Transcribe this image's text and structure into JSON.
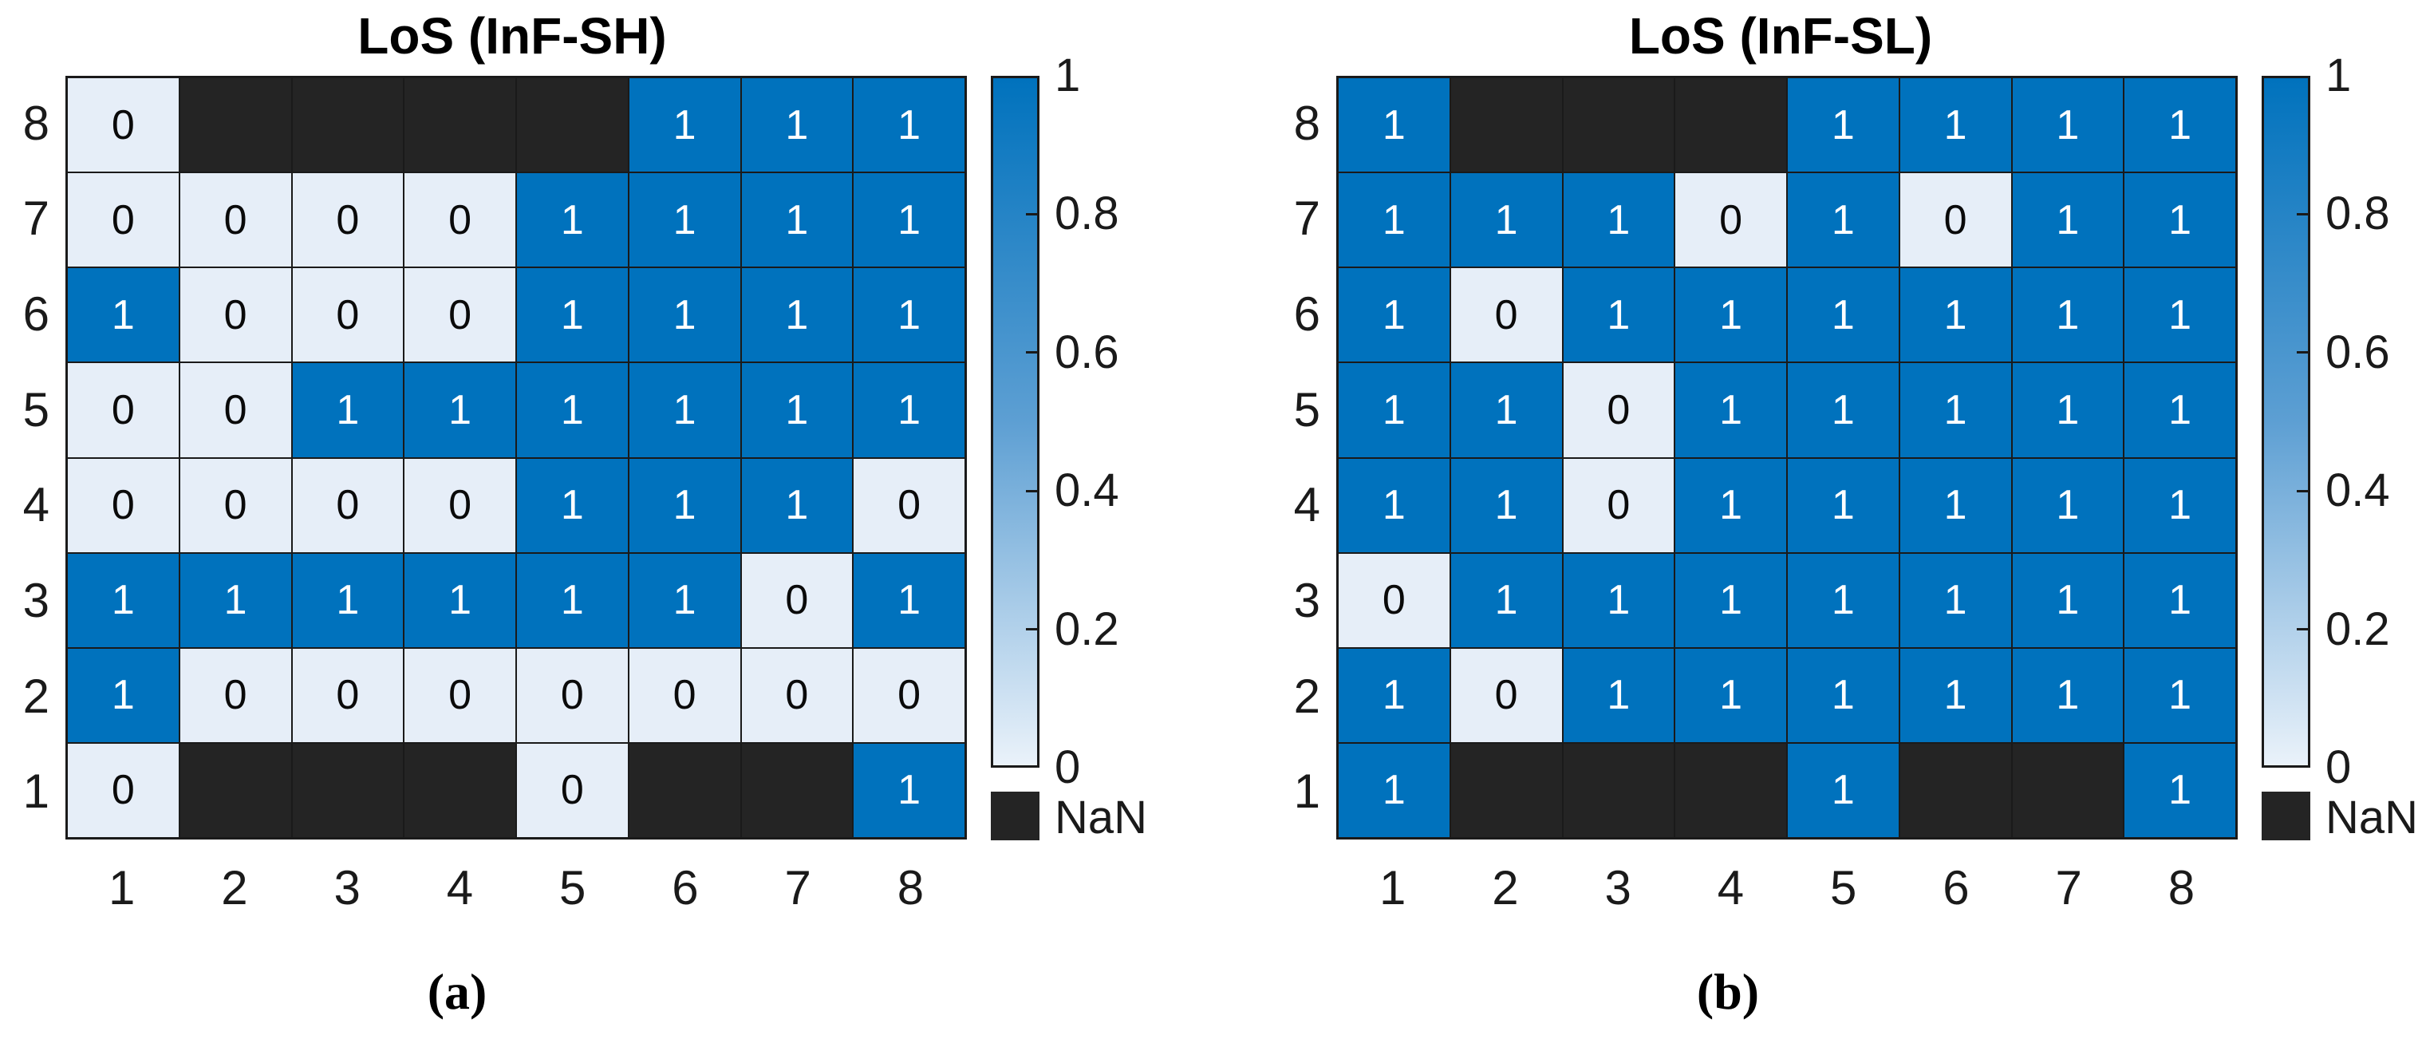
{
  "figure": {
    "captions": [
      "(a)",
      "(b)"
    ],
    "colors": {
      "value_1": "#0072BD",
      "value_0": "#E6EEF8",
      "nan": "#242424",
      "grid_line": "#1a1a1a",
      "colorbar_top": "#0072BD",
      "colorbar_bottom": "#EAF2FA"
    }
  },
  "chart_data": [
    {
      "type": "heatmap",
      "title": "LoS (InF-SH)",
      "x_categories": [
        1,
        2,
        3,
        4,
        5,
        6,
        7,
        8
      ],
      "y_categories_top_to_bottom": [
        8,
        7,
        6,
        5,
        4,
        3,
        2,
        1
      ],
      "values_top_to_bottom": [
        [
          0,
          null,
          null,
          null,
          null,
          1,
          1,
          1
        ],
        [
          0,
          0,
          0,
          0,
          1,
          1,
          1,
          1
        ],
        [
          1,
          0,
          0,
          0,
          1,
          1,
          1,
          1
        ],
        [
          0,
          0,
          1,
          1,
          1,
          1,
          1,
          1
        ],
        [
          0,
          0,
          0,
          0,
          1,
          1,
          1,
          0
        ],
        [
          1,
          1,
          1,
          1,
          1,
          1,
          0,
          1
        ],
        [
          1,
          0,
          0,
          0,
          0,
          0,
          0,
          0
        ],
        [
          0,
          null,
          null,
          null,
          0,
          null,
          null,
          1
        ]
      ],
      "value_range": [
        0,
        1
      ],
      "colorbar": {
        "ticks": [
          "1",
          "0.8",
          "0.6",
          "0.4",
          "0.2",
          "0"
        ],
        "nan_label": "NaN"
      }
    },
    {
      "type": "heatmap",
      "title": "LoS (InF-SL)",
      "x_categories": [
        1,
        2,
        3,
        4,
        5,
        6,
        7,
        8
      ],
      "y_categories_top_to_bottom": [
        8,
        7,
        6,
        5,
        4,
        3,
        2,
        1
      ],
      "values_top_to_bottom": [
        [
          1,
          null,
          null,
          null,
          1,
          1,
          1,
          1
        ],
        [
          1,
          1,
          1,
          0,
          1,
          0,
          1,
          1
        ],
        [
          1,
          0,
          1,
          1,
          1,
          1,
          1,
          1
        ],
        [
          1,
          1,
          0,
          1,
          1,
          1,
          1,
          1
        ],
        [
          1,
          1,
          0,
          1,
          1,
          1,
          1,
          1
        ],
        [
          0,
          1,
          1,
          1,
          1,
          1,
          1,
          1
        ],
        [
          1,
          0,
          1,
          1,
          1,
          1,
          1,
          1
        ],
        [
          1,
          null,
          null,
          null,
          1,
          null,
          null,
          1
        ]
      ],
      "value_range": [
        0,
        1
      ],
      "colorbar": {
        "ticks": [
          "1",
          "0.8",
          "0.6",
          "0.4",
          "0.2",
          "0"
        ],
        "nan_label": "NaN"
      }
    }
  ]
}
